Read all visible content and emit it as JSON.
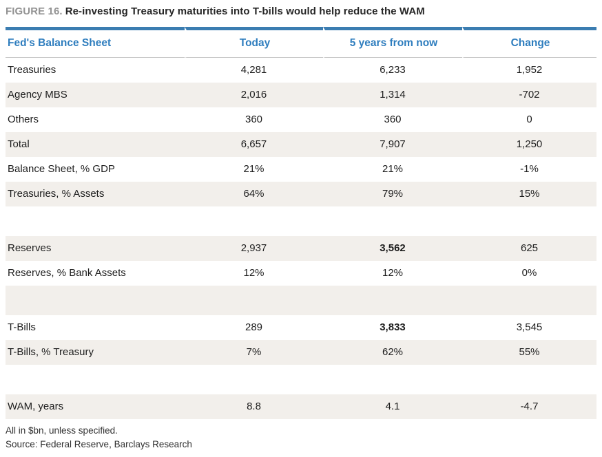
{
  "figure": {
    "label": "FIGURE 16.",
    "title": "Re-investing Treasury maturities into T-bills would help reduce the WAM"
  },
  "table": {
    "columns": [
      "Fed's Balance Sheet",
      "Today",
      "5 years from now",
      "Change"
    ],
    "rows": [
      {
        "label": "Treasuries",
        "today": "4,281",
        "five_years": "6,233",
        "change": "1,952"
      },
      {
        "label": "Agency MBS",
        "today": "2,016",
        "five_years": "1,314",
        "change": "-702"
      },
      {
        "label": "Others",
        "today": "360",
        "five_years": "360",
        "change": "0"
      },
      {
        "label": "Total",
        "today": "6,657",
        "five_years": "7,907",
        "change": "1,250"
      },
      {
        "label": "Balance Sheet, % GDP",
        "today": "21%",
        "five_years": "21%",
        "change": "-1%"
      },
      {
        "label": "Treasuries, % Assets",
        "today": "64%",
        "five_years": "79%",
        "change": "15%"
      },
      {
        "spacer": true
      },
      {
        "label": "Reserves",
        "today": "2,937",
        "five_years": "3,562",
        "change": "625",
        "five_years_bold": true
      },
      {
        "label": "Reserves, % Bank Assets",
        "today": "12%",
        "five_years": "12%",
        "change": "0%"
      },
      {
        "spacer": true
      },
      {
        "label": "T-Bills",
        "today": "289",
        "five_years": "3,833",
        "change": "3,545",
        "five_years_bold": true
      },
      {
        "label": "T-Bills, % Treasury",
        "today": "7%",
        "five_years": "62%",
        "change": "55%"
      },
      {
        "spacer": true
      },
      {
        "label": "WAM, years",
        "today": "8.8",
        "five_years": "4.1",
        "change": "-4.7"
      }
    ]
  },
  "footnotes": {
    "units": "All in $bn, unless specified.",
    "source": "Source: Federal Reserve, Barclays Research"
  },
  "colors": {
    "accent_blue_bar": "#3b7db1",
    "header_text_blue": "#2e7dbe",
    "row_shade": "#f2efeb",
    "header_rule_gray": "#c8c8c8",
    "figure_label_gray": "#939393"
  }
}
